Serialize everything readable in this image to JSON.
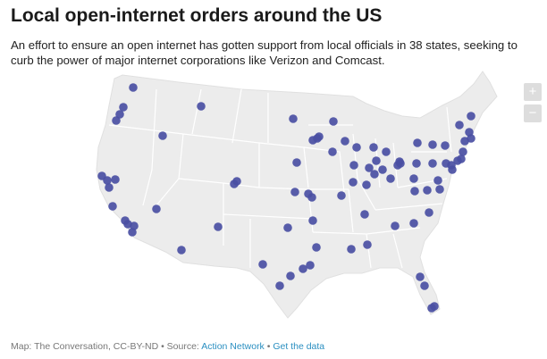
{
  "header": {
    "title": "Local open-internet orders around the US",
    "subtitle": "An effort to ensure an open internet has gotten support from local officials in 38 states, seeking to curb the power of major internet corporations like Verizon and Comcast."
  },
  "controls": {
    "zoom_in": "+",
    "zoom_out": "−"
  },
  "footer": {
    "credit": "Map: The Conversation, CC-BY-ND • Source:",
    "source_link": "Action Network",
    "separator": "•",
    "data_link": "Get the data"
  }
}
